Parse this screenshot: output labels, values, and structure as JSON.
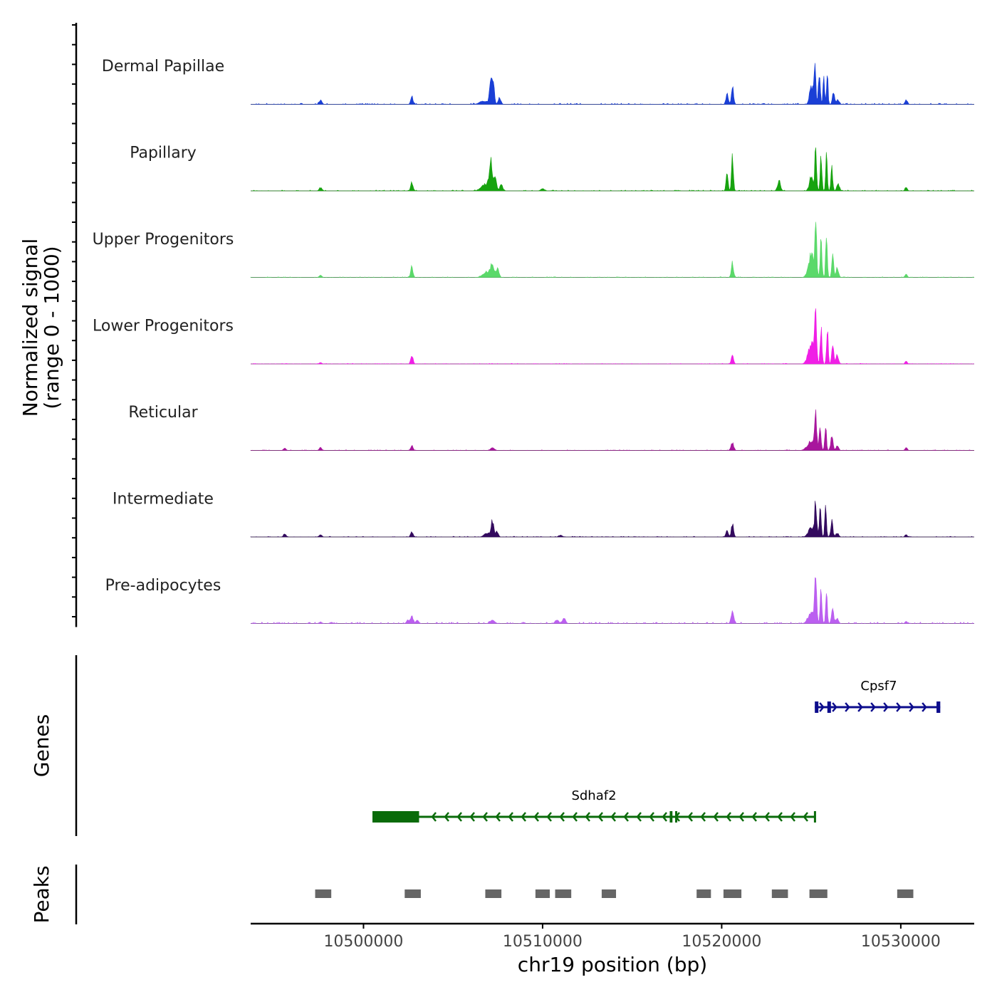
{
  "chart_data": {
    "type": "area",
    "title": "",
    "ylabel_line1": "Normalized signal",
    "ylabel_line2": "(range 0 - 1000)",
    "xlabel": "chr19 position (bp)",
    "chromosome": "chr19",
    "xlim": [
      10493700,
      10534100
    ],
    "x_ticks": [
      10500000,
      10510000,
      10520000,
      10530000
    ],
    "x_tick_labels": [
      "10500000",
      "10510000",
      "10520000",
      "10530000"
    ],
    "y_range": [
      0,
      1000
    ],
    "tracks": [
      {
        "name": "Dermal Papillae",
        "color": "#1a3fd6",
        "peaks": [
          [
            10497600,
            90,
            70
          ],
          [
            10502700,
            180,
            60
          ],
          [
            10506700,
            70,
            200
          ],
          [
            10507100,
            600,
            70
          ],
          [
            10507250,
            450,
            60
          ],
          [
            10507600,
            150,
            70
          ],
          [
            10520300,
            220,
            60
          ],
          [
            10520600,
            380,
            60
          ],
          [
            10525000,
            400,
            90
          ],
          [
            10525200,
            1000,
            50
          ],
          [
            10525450,
            700,
            50
          ],
          [
            10525700,
            560,
            45
          ],
          [
            10525900,
            650,
            40
          ],
          [
            10526250,
            300,
            60
          ],
          [
            10526500,
            100,
            70
          ],
          [
            10530300,
            100,
            60
          ]
        ],
        "noise": 0.02
      },
      {
        "name": "Papillary",
        "color": "#17a30f",
        "peaks": [
          [
            10497600,
            70,
            70
          ],
          [
            10502700,
            190,
            60
          ],
          [
            10506800,
            150,
            200
          ],
          [
            10507100,
            620,
            80
          ],
          [
            10507350,
            350,
            70
          ],
          [
            10507700,
            160,
            70
          ],
          [
            10510000,
            40,
            100
          ],
          [
            10520300,
            480,
            50
          ],
          [
            10520600,
            720,
            50
          ],
          [
            10523200,
            220,
            80
          ],
          [
            10525000,
            300,
            100
          ],
          [
            10525250,
            1000,
            50
          ],
          [
            10525550,
            800,
            45
          ],
          [
            10525850,
            950,
            40
          ],
          [
            10526150,
            500,
            50
          ],
          [
            10526500,
            150,
            70
          ],
          [
            10530300,
            70,
            60
          ]
        ],
        "noise": 0.015
      },
      {
        "name": "Upper Progenitors",
        "color": "#5bd96a",
        "peaks": [
          [
            10497600,
            40,
            70
          ],
          [
            10502700,
            230,
            60
          ],
          [
            10506900,
            120,
            200
          ],
          [
            10507200,
            270,
            100
          ],
          [
            10507500,
            180,
            70
          ],
          [
            10520600,
            330,
            60
          ],
          [
            10525000,
            500,
            150
          ],
          [
            10525250,
            1000,
            55
          ],
          [
            10525550,
            800,
            50
          ],
          [
            10525850,
            900,
            45
          ],
          [
            10526200,
            500,
            50
          ],
          [
            10526450,
            200,
            70
          ],
          [
            10530300,
            60,
            60
          ]
        ],
        "noise": 0.01
      },
      {
        "name": "Lower Progenitors",
        "color": "#f01fe6",
        "peaks": [
          [
            10497600,
            25,
            70
          ],
          [
            10502700,
            200,
            60
          ],
          [
            10520600,
            180,
            60
          ],
          [
            10525000,
            450,
            160
          ],
          [
            10525250,
            1000,
            55
          ],
          [
            10525550,
            750,
            50
          ],
          [
            10525900,
            800,
            45
          ],
          [
            10526200,
            450,
            55
          ],
          [
            10526450,
            200,
            70
          ],
          [
            10530300,
            50,
            60
          ]
        ],
        "noise": 0.01
      },
      {
        "name": "Reticular",
        "color": "#a8169d",
        "peaks": [
          [
            10495600,
            40,
            70
          ],
          [
            10497600,
            50,
            70
          ],
          [
            10502700,
            120,
            60
          ],
          [
            10507200,
            50,
            100
          ],
          [
            10520600,
            170,
            70
          ],
          [
            10525000,
            200,
            200
          ],
          [
            10525250,
            700,
            60
          ],
          [
            10525500,
            550,
            50
          ],
          [
            10525800,
            580,
            45
          ],
          [
            10526150,
            320,
            60
          ],
          [
            10526450,
            100,
            70
          ],
          [
            10530300,
            50,
            60
          ]
        ],
        "noise": 0.01
      },
      {
        "name": "Intermediate",
        "color": "#330a5e",
        "peaks": [
          [
            10495600,
            50,
            70
          ],
          [
            10497600,
            40,
            70
          ],
          [
            10502700,
            110,
            60
          ],
          [
            10506900,
            80,
            150
          ],
          [
            10507200,
            360,
            70
          ],
          [
            10507450,
            120,
            70
          ],
          [
            10511000,
            30,
            100
          ],
          [
            10520300,
            160,
            60
          ],
          [
            10520600,
            300,
            60
          ],
          [
            10525000,
            200,
            150
          ],
          [
            10525250,
            750,
            55
          ],
          [
            10525500,
            600,
            50
          ],
          [
            10525800,
            650,
            45
          ],
          [
            10526150,
            320,
            60
          ],
          [
            10526450,
            80,
            70
          ],
          [
            10530300,
            40,
            60
          ]
        ],
        "noise": 0.012
      },
      {
        "name": "Pre-adipocytes",
        "color": "#bb5ff0",
        "peaks": [
          [
            10497600,
            25,
            80
          ],
          [
            10498200,
            20,
            80
          ],
          [
            10502700,
            170,
            60
          ],
          [
            10502500,
            80,
            80
          ],
          [
            10503000,
            60,
            80
          ],
          [
            10507200,
            60,
            120
          ],
          [
            10510800,
            80,
            90
          ],
          [
            10511200,
            110,
            80
          ],
          [
            10520600,
            270,
            70
          ],
          [
            10525000,
            250,
            160
          ],
          [
            10525250,
            1000,
            55
          ],
          [
            10525550,
            700,
            50
          ],
          [
            10525850,
            750,
            45
          ],
          [
            10526200,
            320,
            60
          ],
          [
            10526450,
            100,
            70
          ],
          [
            10530300,
            40,
            60
          ]
        ],
        "noise": 0.025
      }
    ],
    "genes": [
      {
        "name": "Cpsf7",
        "strand": "+",
        "color": "#0c0c8c",
        "start": 10525200,
        "end": 10532200,
        "thick_start": 10532000,
        "thick_end": 10532200,
        "exons": [
          [
            10525200,
            10525400
          ],
          [
            10525900,
            10526100
          ],
          [
            10532000,
            10532200
          ]
        ]
      },
      {
        "name": "Sdhaf2",
        "strand": "-",
        "color": "#0a6b0a",
        "start": 10500500,
        "end": 10525200,
        "thick_start": 10500500,
        "thick_end": 10503100,
        "exons": [
          [
            10500500,
            10503100
          ],
          [
            10517100,
            10517250
          ],
          [
            10517400,
            10517500
          ],
          [
            10525150,
            10525200
          ]
        ]
      }
    ],
    "peak_regions": [
      [
        10497300,
        10498200
      ],
      [
        10502300,
        10503200
      ],
      [
        10506800,
        10507700
      ],
      [
        10509600,
        10510400
      ],
      [
        10510700,
        10511600
      ],
      [
        10513300,
        10514100
      ],
      [
        10518600,
        10519400
      ],
      [
        10520100,
        10521100
      ],
      [
        10522800,
        10523700
      ],
      [
        10524900,
        10525900
      ],
      [
        10529800,
        10530700
      ]
    ],
    "peak_color": "#666666"
  }
}
